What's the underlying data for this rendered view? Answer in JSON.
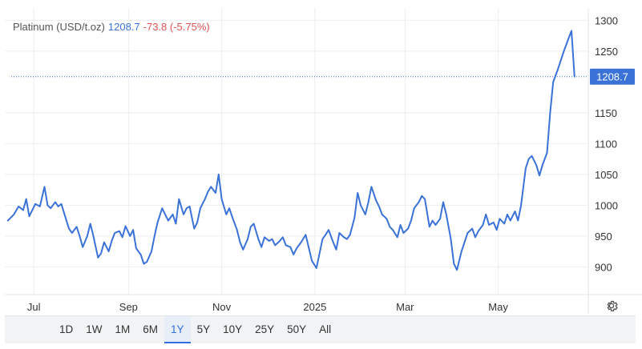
{
  "header": {
    "symbol": "Platinum (USD/t.oz)",
    "last": "1208.7",
    "change": "-73.8 (-5.75%)"
  },
  "colors": {
    "line": "#3a72d8",
    "grid": "#eceef1",
    "axis_text": "#333333",
    "price_tag_bg": "#3a72d8",
    "change_negative": "#e05252"
  },
  "range_buttons": [
    "1D",
    "1W",
    "1M",
    "6M",
    "1Y",
    "5Y",
    "10Y",
    "25Y",
    "50Y",
    "All"
  ],
  "active_range": "1Y",
  "settings_icon": "gear-icon",
  "chart_data": {
    "type": "line",
    "title": "",
    "xlabel": "",
    "ylabel": "",
    "ylim": [
      855,
      1320
    ],
    "y_ticks": [
      900,
      950,
      1000,
      1050,
      1100,
      1150,
      1250,
      1300
    ],
    "x_ticks": [
      {
        "label": "Jul",
        "date": "2024-07-01"
      },
      {
        "label": "Sep",
        "date": "2024-09-01"
      },
      {
        "label": "Nov",
        "date": "2024-11-01"
      },
      {
        "label": "2025",
        "date": "2025-01-01"
      },
      {
        "label": "Mar",
        "date": "2025-03-01"
      },
      {
        "label": "May",
        "date": "2025-05-01"
      }
    ],
    "x_range": [
      "2024-06-12",
      "2025-06-29"
    ],
    "grid": true,
    "last_price_label": "1208.7",
    "last_price": 1208.7,
    "series": [
      {
        "name": "",
        "points": [
          [
            "2024-06-14",
            975
          ],
          [
            "2024-06-18",
            985
          ],
          [
            "2024-06-21",
            998
          ],
          [
            "2024-06-24",
            992
          ],
          [
            "2024-06-26",
            1010
          ],
          [
            "2024-06-28",
            982
          ],
          [
            "2024-07-02",
            1002
          ],
          [
            "2024-07-05",
            998
          ],
          [
            "2024-07-08",
            1030
          ],
          [
            "2024-07-10",
            1000
          ],
          [
            "2024-07-12",
            995
          ],
          [
            "2024-07-15",
            1005
          ],
          [
            "2024-07-17",
            998
          ],
          [
            "2024-07-19",
            1002
          ],
          [
            "2024-07-22",
            978
          ],
          [
            "2024-07-24",
            962
          ],
          [
            "2024-07-26",
            955
          ],
          [
            "2024-07-29",
            965
          ],
          [
            "2024-07-31",
            950
          ],
          [
            "2024-08-02",
            932
          ],
          [
            "2024-08-05",
            950
          ],
          [
            "2024-08-07",
            970
          ],
          [
            "2024-08-09",
            950
          ],
          [
            "2024-08-12",
            915
          ],
          [
            "2024-08-14",
            922
          ],
          [
            "2024-08-16",
            940
          ],
          [
            "2024-08-19",
            925
          ],
          [
            "2024-08-21",
            942
          ],
          [
            "2024-08-23",
            955
          ],
          [
            "2024-08-26",
            958
          ],
          [
            "2024-08-28",
            948
          ],
          [
            "2024-08-30",
            966
          ],
          [
            "2024-09-02",
            950
          ],
          [
            "2024-09-04",
            960
          ],
          [
            "2024-09-06",
            930
          ],
          [
            "2024-09-09",
            920
          ],
          [
            "2024-09-11",
            905
          ],
          [
            "2024-09-13",
            908
          ],
          [
            "2024-09-16",
            925
          ],
          [
            "2024-09-18",
            950
          ],
          [
            "2024-09-20",
            972
          ],
          [
            "2024-09-23",
            995
          ],
          [
            "2024-09-25",
            985
          ],
          [
            "2024-09-27",
            975
          ],
          [
            "2024-09-30",
            985
          ],
          [
            "2024-10-02",
            970
          ],
          [
            "2024-10-04",
            1010
          ],
          [
            "2024-10-07",
            985
          ],
          [
            "2024-10-09",
            995
          ],
          [
            "2024-10-11",
            998
          ],
          [
            "2024-10-14",
            962
          ],
          [
            "2024-10-16",
            972
          ],
          [
            "2024-10-18",
            995
          ],
          [
            "2024-10-21",
            1010
          ],
          [
            "2024-10-23",
            1022
          ],
          [
            "2024-10-25",
            1030
          ],
          [
            "2024-10-28",
            1020
          ],
          [
            "2024-10-30",
            1050
          ],
          [
            "2024-11-01",
            1010
          ],
          [
            "2024-11-04",
            985
          ],
          [
            "2024-11-06",
            995
          ],
          [
            "2024-11-08",
            980
          ],
          [
            "2024-11-11",
            960
          ],
          [
            "2024-11-13",
            940
          ],
          [
            "2024-11-15",
            928
          ],
          [
            "2024-11-18",
            945
          ],
          [
            "2024-11-20",
            965
          ],
          [
            "2024-11-22",
            970
          ],
          [
            "2024-11-25",
            945
          ],
          [
            "2024-11-27",
            932
          ],
          [
            "2024-11-29",
            948
          ],
          [
            "2024-12-02",
            942
          ],
          [
            "2024-12-04",
            945
          ],
          [
            "2024-12-06",
            935
          ],
          [
            "2024-12-09",
            942
          ],
          [
            "2024-12-11",
            948
          ],
          [
            "2024-12-13",
            935
          ],
          [
            "2024-12-16",
            932
          ],
          [
            "2024-12-18",
            920
          ],
          [
            "2024-12-20",
            930
          ],
          [
            "2024-12-23",
            940
          ],
          [
            "2024-12-26",
            952
          ],
          [
            "2024-12-30",
            910
          ],
          [
            "2025-01-02",
            898
          ],
          [
            "2025-01-06",
            945
          ],
          [
            "2025-01-08",
            952
          ],
          [
            "2025-01-10",
            960
          ],
          [
            "2025-01-13",
            940
          ],
          [
            "2025-01-15",
            928
          ],
          [
            "2025-01-17",
            955
          ],
          [
            "2025-01-20",
            948
          ],
          [
            "2025-01-22",
            945
          ],
          [
            "2025-01-24",
            952
          ],
          [
            "2025-01-27",
            980
          ],
          [
            "2025-01-29",
            1020
          ],
          [
            "2025-01-31",
            1000
          ],
          [
            "2025-02-03",
            985
          ],
          [
            "2025-02-05",
            1005
          ],
          [
            "2025-02-07",
            1030
          ],
          [
            "2025-02-10",
            1008
          ],
          [
            "2025-02-12",
            998
          ],
          [
            "2025-02-14",
            985
          ],
          [
            "2025-02-17",
            978
          ],
          [
            "2025-02-19",
            965
          ],
          [
            "2025-02-21",
            960
          ],
          [
            "2025-02-24",
            948
          ],
          [
            "2025-02-26",
            968
          ],
          [
            "2025-02-28",
            955
          ],
          [
            "2025-03-03",
            962
          ],
          [
            "2025-03-05",
            975
          ],
          [
            "2025-03-07",
            995
          ],
          [
            "2025-03-10",
            1005
          ],
          [
            "2025-03-12",
            1015
          ],
          [
            "2025-03-14",
            1010
          ],
          [
            "2025-03-17",
            965
          ],
          [
            "2025-03-19",
            975
          ],
          [
            "2025-03-21",
            968
          ],
          [
            "2025-03-24",
            978
          ],
          [
            "2025-03-26",
            1005
          ],
          [
            "2025-03-28",
            985
          ],
          [
            "2025-03-31",
            945
          ],
          [
            "2025-04-02",
            905
          ],
          [
            "2025-04-04",
            895
          ],
          [
            "2025-04-07",
            925
          ],
          [
            "2025-04-09",
            940
          ],
          [
            "2025-04-11",
            955
          ],
          [
            "2025-04-14",
            962
          ],
          [
            "2025-04-16",
            948
          ],
          [
            "2025-04-18",
            958
          ],
          [
            "2025-04-21",
            968
          ],
          [
            "2025-04-23",
            985
          ],
          [
            "2025-04-25",
            968
          ],
          [
            "2025-04-28",
            972
          ],
          [
            "2025-04-30",
            960
          ],
          [
            "2025-05-02",
            978
          ],
          [
            "2025-05-05",
            970
          ],
          [
            "2025-05-07",
            985
          ],
          [
            "2025-05-09",
            975
          ],
          [
            "2025-05-12",
            990
          ],
          [
            "2025-05-14",
            975
          ],
          [
            "2025-05-16",
            1000
          ],
          [
            "2025-05-19",
            1060
          ],
          [
            "2025-05-21",
            1075
          ],
          [
            "2025-05-23",
            1080
          ],
          [
            "2025-05-26",
            1065
          ],
          [
            "2025-05-28",
            1048
          ],
          [
            "2025-05-30",
            1065
          ],
          [
            "2025-06-02",
            1085
          ],
          [
            "2025-06-04",
            1150
          ],
          [
            "2025-06-06",
            1200
          ],
          [
            "2025-06-09",
            1220
          ],
          [
            "2025-06-11",
            1235
          ],
          [
            "2025-06-13",
            1250
          ],
          [
            "2025-06-16",
            1270
          ],
          [
            "2025-06-18",
            1283
          ],
          [
            "2025-06-20",
            1208.7
          ]
        ]
      }
    ]
  }
}
